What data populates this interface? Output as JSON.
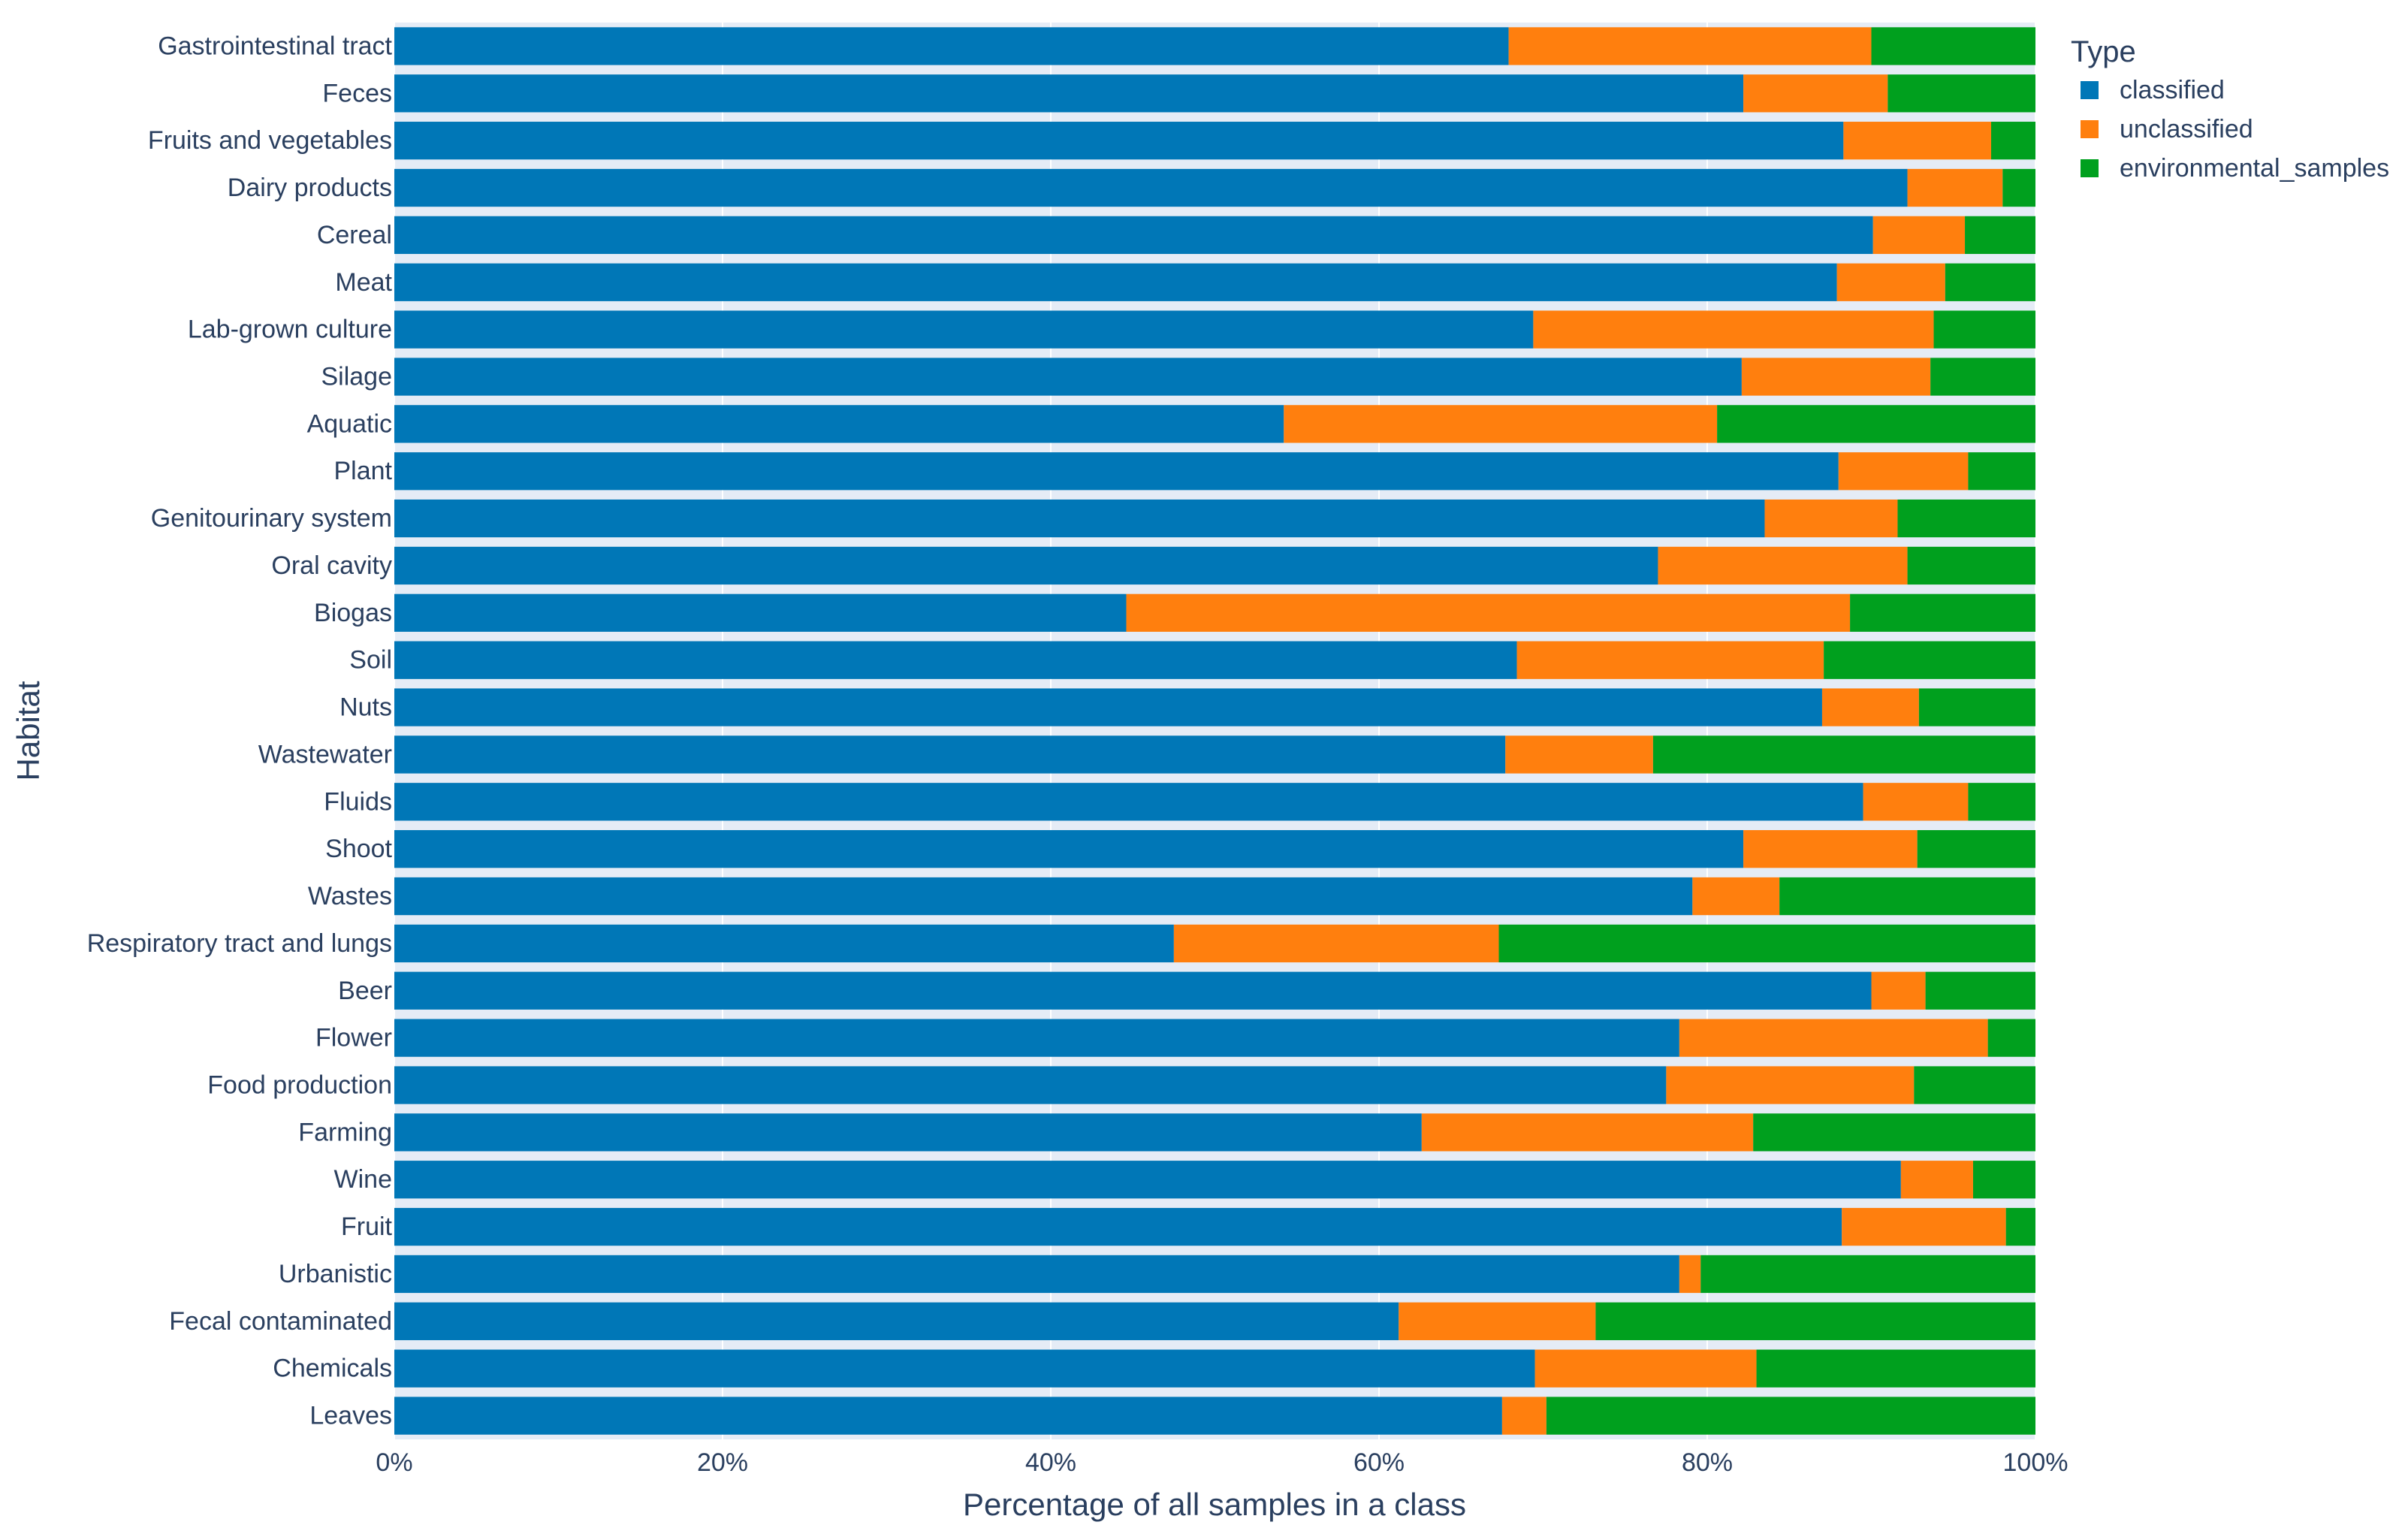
{
  "chart_data": {
    "type": "bar",
    "orientation": "horizontal",
    "stacked": true,
    "title": "",
    "xlabel": "Percentage of all samples in a class",
    "ylabel": "Habitat",
    "xlim": [
      0,
      100
    ],
    "x_ticks": [
      0,
      20,
      40,
      60,
      80,
      100
    ],
    "x_tick_labels": [
      "0%",
      "20%",
      "40%",
      "60%",
      "80%",
      "100%"
    ],
    "grid": true,
    "legend_title": "Type",
    "legend_position": "top-right",
    "categories": [
      "Gastrointestinal tract",
      "Feces",
      "Fruits and vegetables",
      "Dairy products",
      "Cereal",
      "Meat",
      "Lab-grown culture",
      "Silage",
      "Aquatic",
      "Plant",
      "Genitourinary system",
      "Oral cavity",
      "Biogas",
      "Soil",
      "Nuts",
      "Wastewater",
      "Fluids",
      "Shoot",
      "Wastes",
      "Respiratory tract and lungs",
      "Beer",
      "Flower",
      "Food production",
      "Farming",
      "Wine",
      "Fruit",
      "Urbanistic",
      "Fecal contaminated",
      "Chemicals",
      "Leaves"
    ],
    "series": [
      {
        "name": "classified",
        "color": "#0077b7",
        "values": [
          67.9,
          82.2,
          88.3,
          92.2,
          90.1,
          87.9,
          69.4,
          82.1,
          54.2,
          88.0,
          83.5,
          77.0,
          44.6,
          68.4,
          87.0,
          67.7,
          89.5,
          82.2,
          79.1,
          47.5,
          90.0,
          78.3,
          77.5,
          62.6,
          91.8,
          88.2,
          78.3,
          61.2,
          69.5,
          67.5
        ]
      },
      {
        "name": "unclassified",
        "color": "#ff7f0e",
        "values": [
          22.1,
          8.8,
          9.0,
          5.8,
          5.6,
          6.6,
          24.4,
          11.5,
          26.4,
          7.9,
          8.1,
          15.2,
          44.1,
          18.7,
          5.9,
          9.0,
          6.4,
          10.6,
          5.3,
          19.8,
          3.3,
          18.8,
          15.1,
          20.2,
          4.4,
          10.0,
          1.3,
          12.0,
          13.5,
          2.7
        ]
      },
      {
        "name": "environmental_samples",
        "color": "#00a01e",
        "values": [
          10.0,
          9.0,
          2.7,
          2.0,
          4.3,
          5.5,
          6.2,
          6.4,
          19.4,
          4.1,
          8.4,
          7.8,
          11.3,
          12.9,
          7.1,
          23.3,
          4.1,
          7.2,
          15.6,
          32.7,
          6.7,
          2.9,
          7.4,
          17.2,
          3.8,
          1.8,
          20.4,
          26.8,
          17.0,
          29.8
        ]
      }
    ]
  }
}
